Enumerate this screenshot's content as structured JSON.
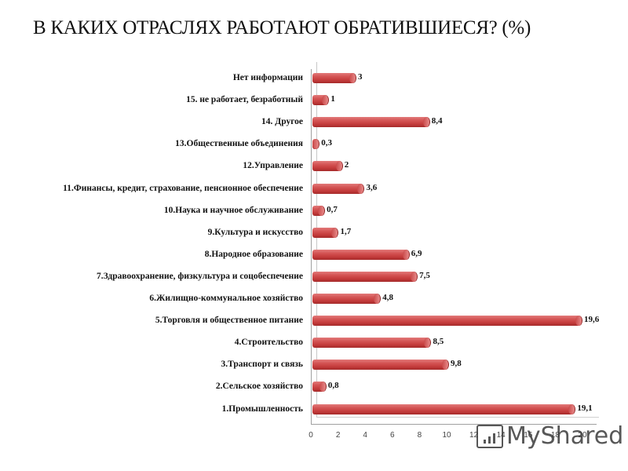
{
  "title": "В КАКИХ ОТРАСЛЯХ РАБОТАЮТ ОБРАТИВШИЕСЯ? (%)",
  "watermark": "MyShared",
  "colors": {
    "bar": "#c94444",
    "bar_highlight": "#e27b7b",
    "axis": "#a0a0a0",
    "text": "#111111"
  },
  "chart_data": {
    "type": "bar",
    "orientation": "horizontal",
    "style": "3d-cylinder",
    "title": "В КАКИХ ОТРАСЛЯХ РАБОТАЮТ ОБРАТИВШИЕСЯ? (%)",
    "xlabel": "",
    "ylabel": "",
    "xlim": [
      0,
      20
    ],
    "x_ticks": [
      "0",
      "2",
      "4",
      "6",
      "8",
      "10",
      "12",
      "14",
      "16",
      "18",
      "20"
    ],
    "grid": false,
    "legend": null,
    "categories": [
      "Нет информации",
      "15. не работает, безработный",
      "14. Другое",
      "13.Общественные объединения",
      "12.Управление",
      "11.Финансы, кредит, страхование, пенсионное обеспечение",
      "10.Наука и научное обслуживание",
      "9.Культура и искусство",
      "8.Народное образование",
      "7.Здравоохранение, физкультура и соцобеспечение",
      "6.Жилищно-коммунальное хозяйство",
      "5.Торговля и общественное питание",
      "4.Строительство",
      "3.Транспорт и связь",
      "2.Сельское хозяйство",
      "1.Промышленность"
    ],
    "values": [
      3,
      1,
      8.4,
      0.3,
      2,
      3.6,
      0.7,
      1.7,
      6.9,
      7.5,
      4.8,
      19.6,
      8.5,
      9.8,
      0.8,
      19.1
    ],
    "value_labels": [
      "3",
      "1",
      "8,4",
      "0,3",
      "2",
      "3,6",
      "0,7",
      "1,7",
      "6,9",
      "7,5",
      "4,8",
      "19,6",
      "8,5",
      "9,8",
      "0,8",
      "19,1"
    ]
  }
}
